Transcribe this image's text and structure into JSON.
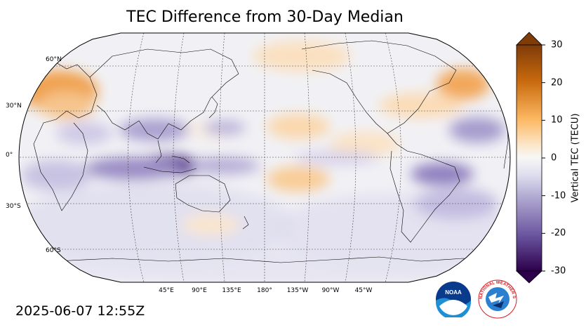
{
  "title": "TEC Difference from 30-Day Median",
  "timestamp": "2025-06-07 12:55Z",
  "map": {
    "projection": "Robinson",
    "central_longitude": 180,
    "lat_labels": [
      "60°N",
      "30°N",
      "0°",
      "30°S",
      "60°S"
    ],
    "lon_labels": [
      "45°E",
      "90°E",
      "135°E",
      "180°",
      "135°W",
      "90°W",
      "45°W"
    ]
  },
  "colorbar": {
    "label": "Vertical TEC (TECU)",
    "ticks": [
      "30",
      "20",
      "10",
      "0",
      "-10",
      "-20",
      "-30"
    ],
    "range": [
      -30,
      30
    ],
    "colormap": "PuOr_r",
    "extend": "both"
  },
  "logos": {
    "noaa_text": "NOAA",
    "nws_text": "NATIONAL WEATHER SERVICE"
  },
  "colors": {
    "positive": "#e08214",
    "negative": "#542788",
    "neutral": "#f7f7f7"
  }
}
